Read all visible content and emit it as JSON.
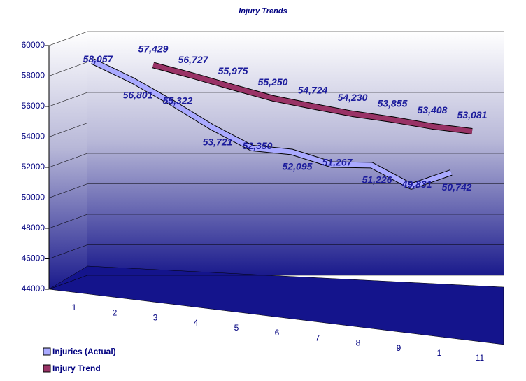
{
  "chart_data": {
    "type": "line",
    "title": "Injury Trends",
    "categories": [
      "1",
      "2",
      "3",
      "4",
      "5",
      "6",
      "7",
      "8",
      "9",
      "1",
      "11"
    ],
    "series": [
      {
        "name": "Injuries (Actual)",
        "color": "#aaaaff",
        "values": [
          58057,
          56801,
          55322,
          53721,
          52350,
          52095,
          51267,
          51226,
          49831,
          50742,
          null
        ],
        "value_labels": [
          "58,057",
          "56,801",
          "55,322",
          "53,721",
          "52,350",
          "52,095",
          "51,267",
          "51,226",
          "49,831",
          "50,742",
          null
        ]
      },
      {
        "name": "Injury Trend",
        "color": "#993366",
        "values": [
          null,
          57429,
          56727,
          55975,
          55250,
          54724,
          54230,
          53855,
          53408,
          53081,
          null
        ],
        "value_labels": [
          null,
          "57,429",
          "56,727",
          "55,975",
          "55,250",
          "54,724",
          "54,230",
          "53,855",
          "53,408",
          "53,081",
          null
        ]
      }
    ],
    "ylim": [
      44000,
      60000
    ],
    "yticks": [
      44000,
      46000,
      48000,
      50000,
      52000,
      54000,
      56000,
      58000,
      60000
    ],
    "grid": true,
    "legend": "bottom-left"
  }
}
